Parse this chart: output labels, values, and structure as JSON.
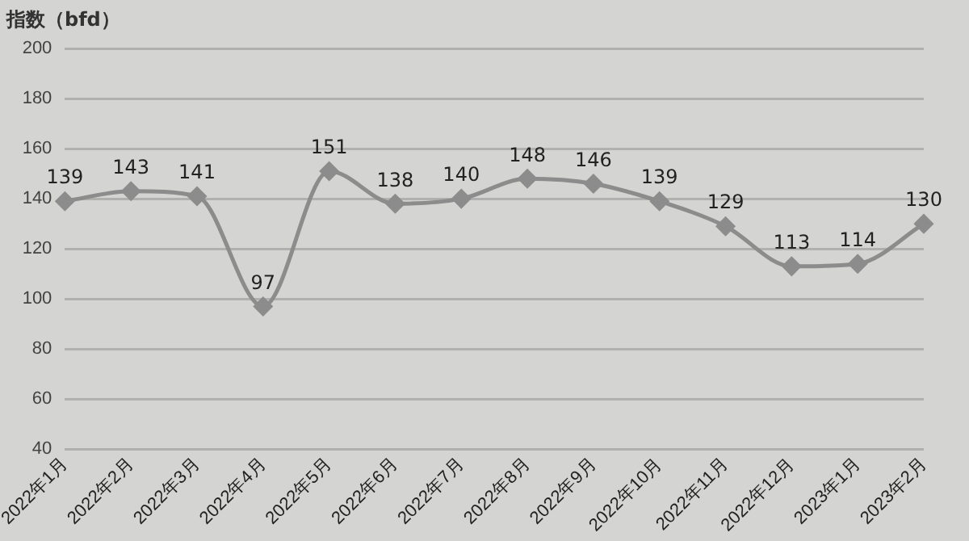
{
  "chart_data": {
    "type": "line",
    "ylabel": "指数（bfd）",
    "categories": [
      "2022年1月",
      "2022年2月",
      "2022年3月",
      "2022年4月",
      "2022年5月",
      "2022年6月",
      "2022年7月",
      "2022年8月",
      "2022年9月",
      "2022年10月",
      "2022年11月",
      "2022年12月",
      "2023年1月",
      "2023年2月"
    ],
    "series": [
      {
        "color": "#8c8c8c",
        "values": [
          139,
          143,
          141,
          97,
          151,
          138,
          140,
          148,
          146,
          139,
          129,
          113,
          114,
          130
        ]
      }
    ],
    "ylim": [
      40,
      200
    ],
    "yticks": [
      40,
      60,
      80,
      100,
      120,
      140,
      160,
      180,
      200
    ],
    "grid": "y",
    "legend": false,
    "marker": "diamond",
    "line_style": "solid",
    "data_labels": true
  }
}
